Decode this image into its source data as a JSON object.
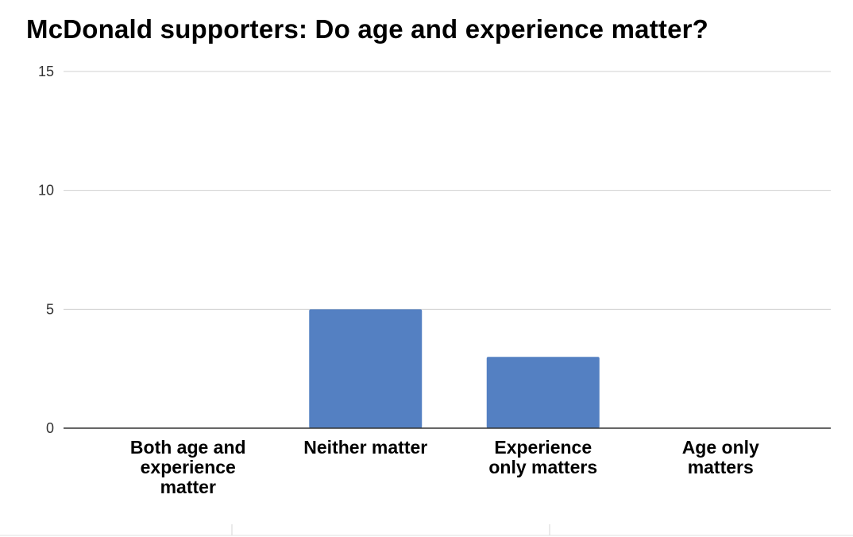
{
  "chart_data": {
    "type": "bar",
    "title": "McDonald supporters: Do age and experience matter?",
    "categories": [
      [
        "Both age and",
        "experience",
        "matter"
      ],
      [
        "Neither matter"
      ],
      [
        "Experience",
        "only matters"
      ],
      [
        "Age only",
        "matters"
      ]
    ],
    "values": [
      0,
      5,
      3,
      0
    ],
    "ylim": [
      0,
      15
    ],
    "yticks": [
      0,
      5,
      10,
      15
    ],
    "xlabel": "",
    "ylabel": "",
    "grid": true,
    "bar_color": "#5480c2"
  }
}
